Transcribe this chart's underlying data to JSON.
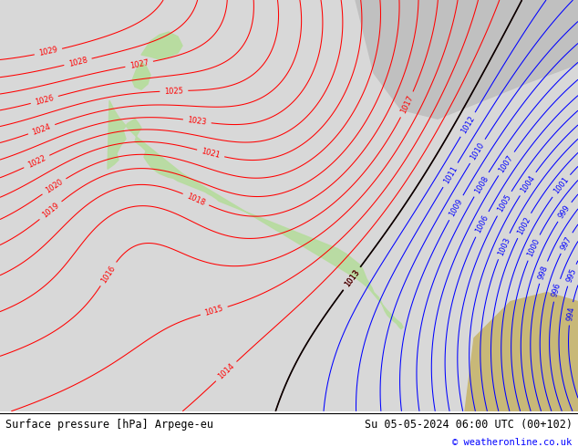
{
  "title_left": "Surface pressure [hPa] Arpege-eu",
  "title_right": "Su 05-05-2024 06:00 UTC (00+102)",
  "copyright": "© weatheronline.co.uk",
  "bg_color": "#d8d8d8",
  "land_green": "#b8dca0",
  "land_tan": "#c8b878",
  "land_arctic": "#c0c0c0",
  "footer_bg": "#ffffff",
  "footer_fontsize": 8.5,
  "copyright_fontsize": 7.5,
  "figsize": [
    6.34,
    4.9
  ],
  "dpi": 100
}
